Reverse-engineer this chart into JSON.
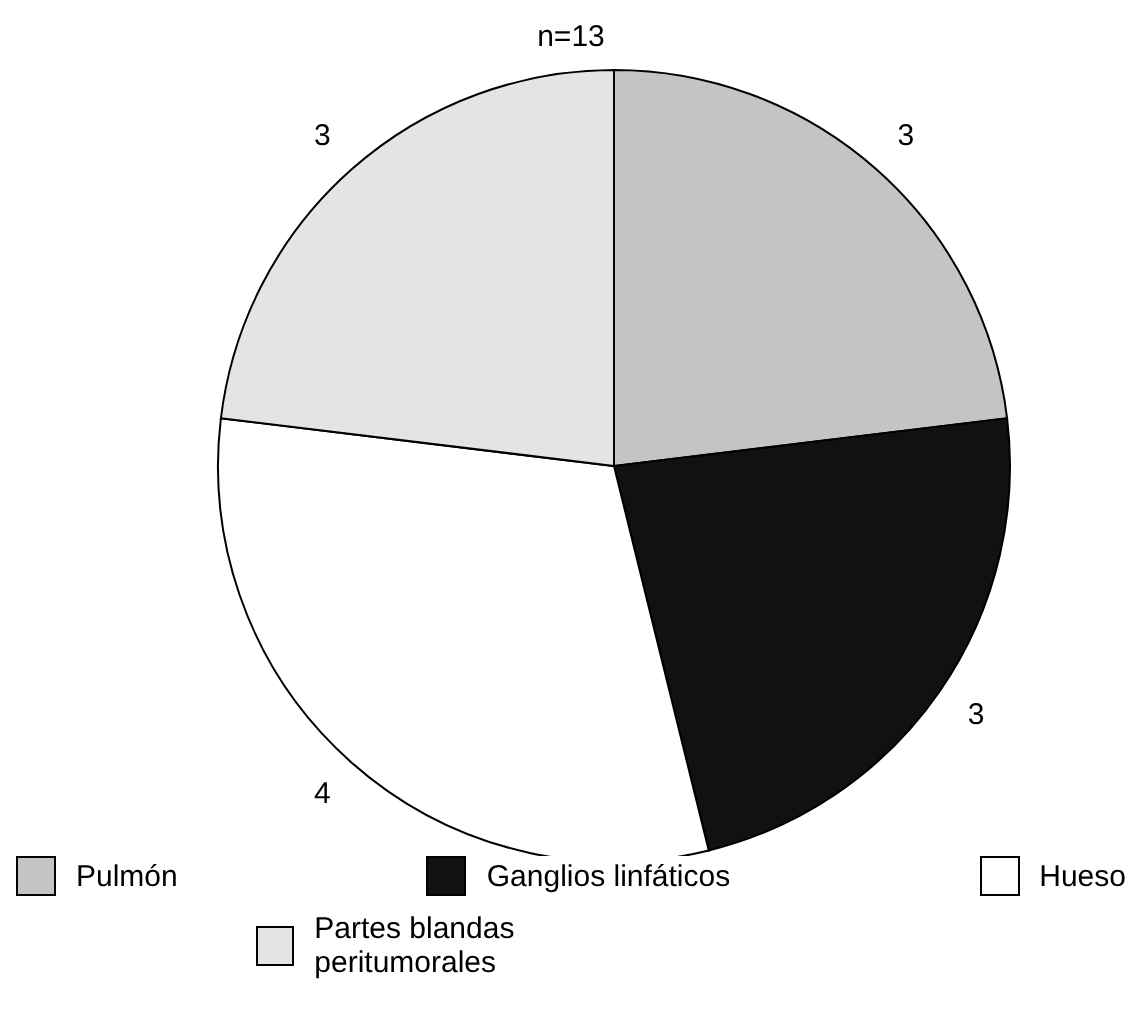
{
  "chart_data": {
    "type": "pie",
    "title": "n=13",
    "categories": [
      "Pulmón",
      "Ganglios linfáticos",
      "Hueso",
      "Partes blandas peritumorales"
    ],
    "values": [
      3,
      3,
      4,
      3
    ],
    "colors": [
      "#c4c4c4",
      "#111111",
      "#ffffff",
      "#e4e4e4"
    ],
    "data_labels": true,
    "legend": "bottom"
  }
}
